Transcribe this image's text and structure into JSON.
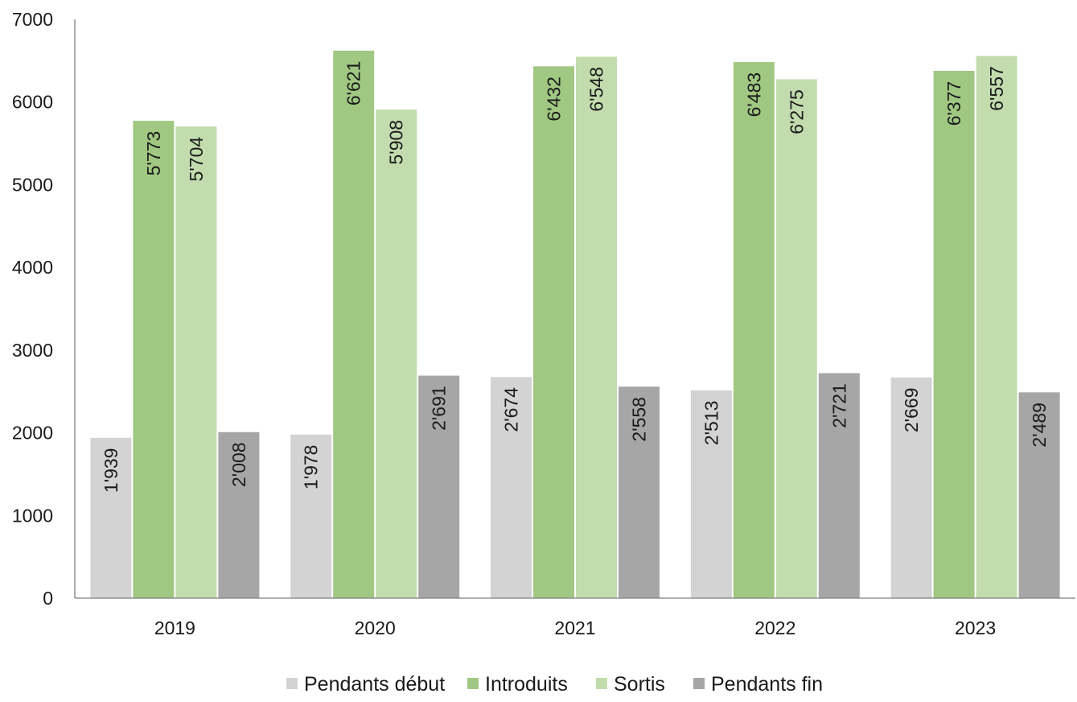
{
  "chart_data": {
    "type": "bar",
    "title": "",
    "xlabel": "",
    "ylabel": "",
    "categories": [
      "2019",
      "2020",
      "2021",
      "2022",
      "2023"
    ],
    "ylim": [
      0,
      7000
    ],
    "yticks": [
      0,
      1000,
      2000,
      3000,
      4000,
      5000,
      6000,
      7000
    ],
    "grid": false,
    "legend_position": "bottom",
    "series": [
      {
        "name": "Pendants début",
        "color": "#d3d3d3",
        "values": [
          1939,
          1978,
          2674,
          2513,
          2669
        ],
        "labels": [
          "1'939",
          "1'978",
          "2'674",
          "2'513",
          "2'669"
        ]
      },
      {
        "name": "Introduits",
        "color": "#a0c882",
        "values": [
          5773,
          6621,
          6432,
          6483,
          6377
        ],
        "labels": [
          "5'773",
          "6'621",
          "6'432",
          "6'483",
          "6'377"
        ]
      },
      {
        "name": "Sortis",
        "color": "#c2dcae",
        "values": [
          5704,
          5908,
          6548,
          6275,
          6557
        ],
        "labels": [
          "5'704",
          "5'908",
          "6'548",
          "6'275",
          "6'557"
        ]
      },
      {
        "name": "Pendants fin",
        "color": "#a6a6a6",
        "values": [
          2008,
          2691,
          2558,
          2721,
          2489
        ],
        "labels": [
          "2'008",
          "2'691",
          "2'558",
          "2'721",
          "2'489"
        ]
      }
    ]
  }
}
